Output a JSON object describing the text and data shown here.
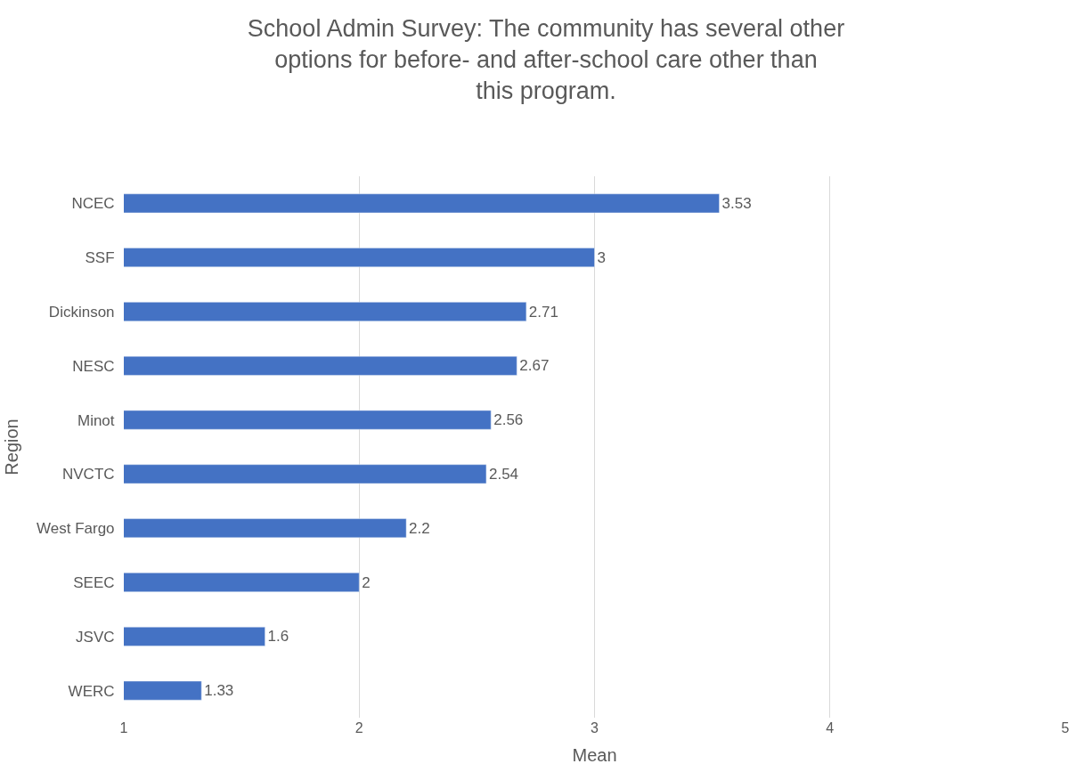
{
  "chart_data": {
    "type": "bar",
    "orientation": "horizontal",
    "title": "School Admin Survey: The community has several other options for before- and after-school care other than this program.",
    "xlabel": "Mean",
    "ylabel": "Region",
    "categories": [
      "NCEC",
      "SSF",
      "Dickinson",
      "NESC",
      "Minot",
      "NVCTC",
      "West Fargo",
      "SEEC",
      "JSVC",
      "WERC"
    ],
    "values": [
      3.53,
      3,
      2.71,
      2.67,
      2.56,
      2.54,
      2.2,
      2,
      1.6,
      1.33
    ],
    "color": "#4472c4",
    "xlim": [
      1,
      5
    ],
    "xticks": [
      1,
      2,
      3,
      4,
      5
    ],
    "grid": "x",
    "legend": false,
    "data_labels": true
  }
}
